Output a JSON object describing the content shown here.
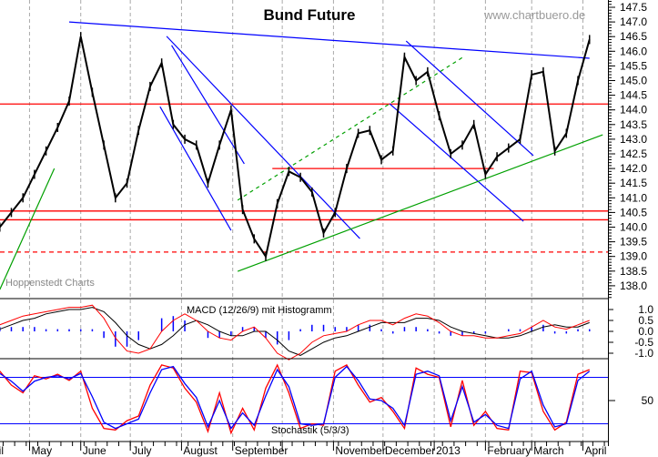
{
  "chart_data": {
    "type": "line",
    "title": "Bund Future",
    "watermark": "www.chartbuero.de",
    "source_label": "Hoppenstedt Charts",
    "ylim": [
      137.5,
      147.7
    ],
    "y_ticks": [
      "147.5",
      "147.0",
      "146.5",
      "146.0",
      "145.5",
      "145.0",
      "144.5",
      "144.0",
      "143.5",
      "143.0",
      "142.5",
      "142.0",
      "141.5",
      "141.0",
      "140.5",
      "140.0",
      "139.5",
      "139.0",
      "138.5",
      "138.0"
    ],
    "months": [
      {
        "label": "April",
        "date": "2012-04-01"
      },
      {
        "label": "May",
        "date": "2012-05-01"
      },
      {
        "label": "June",
        "date": "2012-06-01"
      },
      {
        "label": "July",
        "date": "2012-07-01"
      },
      {
        "label": "August",
        "date": "2012-08-01"
      },
      {
        "label": "September",
        "date": "2012-09-01"
      },
      {
        "label": "",
        "date": "2012-10-01"
      },
      {
        "label": "November",
        "date": "2012-11-01"
      },
      {
        "label": "December",
        "date": "2012-12-01"
      },
      {
        "label": "2013",
        "date": "2013-01-01"
      },
      {
        "label": "February",
        "date": "2013-02-01"
      },
      {
        "label": "March",
        "date": "2013-03-01"
      },
      {
        "label": "April",
        "date": "2013-04-01"
      }
    ],
    "price": {
      "dates": [
        "2012-04-13",
        "2012-04-20",
        "2012-04-27",
        "2012-05-04",
        "2012-05-11",
        "2012-05-18",
        "2012-05-25",
        "2012-06-01",
        "2012-06-08",
        "2012-06-15",
        "2012-06-22",
        "2012-06-29",
        "2012-07-06",
        "2012-07-13",
        "2012-07-20",
        "2012-07-27",
        "2012-08-03",
        "2012-08-10",
        "2012-08-17",
        "2012-08-24",
        "2012-08-31",
        "2012-09-07",
        "2012-09-14",
        "2012-09-21",
        "2012-09-28",
        "2012-10-05",
        "2012-10-12",
        "2012-10-19",
        "2012-10-26",
        "2012-11-02",
        "2012-11-09",
        "2012-11-16",
        "2012-11-23",
        "2012-11-30",
        "2012-12-07",
        "2012-12-14",
        "2012-12-21",
        "2012-12-28",
        "2013-01-04",
        "2013-01-11",
        "2013-01-18",
        "2013-01-25",
        "2013-02-01",
        "2013-02-08",
        "2013-02-15",
        "2013-02-22",
        "2013-03-01",
        "2013-03-08",
        "2013-03-15",
        "2013-03-22",
        "2013-03-29",
        "2013-04-05"
      ],
      "close": [
        140.0,
        140.5,
        141.0,
        141.8,
        142.6,
        143.4,
        144.3,
        146.5,
        144.6,
        142.8,
        141.0,
        141.5,
        143.3,
        144.8,
        145.6,
        143.5,
        143.0,
        142.8,
        141.5,
        142.8,
        144.0,
        140.6,
        139.6,
        139.0,
        140.8,
        141.9,
        141.7,
        141.2,
        139.8,
        140.5,
        142.0,
        143.2,
        143.3,
        142.3,
        142.6,
        145.8,
        145.0,
        145.3,
        143.8,
        142.5,
        142.8,
        143.5,
        141.8,
        142.4,
        142.7,
        143.0,
        145.2,
        145.3,
        142.6,
        143.2,
        145.0,
        146.4
      ]
    },
    "horizontal_lines": [
      {
        "price": 144.2,
        "color": "#ff0000",
        "style": "solid"
      },
      {
        "price": 140.55,
        "color": "#ff0000",
        "style": "solid"
      },
      {
        "price": 140.25,
        "color": "#ff0000",
        "style": "solid"
      },
      {
        "price": 139.15,
        "color": "#ff0000",
        "style": "dashed"
      },
      {
        "price": 142.0,
        "color": "#ff0000",
        "style": "solid",
        "from": "2012-09-25",
        "to": "2013-02-06"
      }
    ],
    "trend_lines": [
      {
        "from": [
          "2012-05-25",
          147.0
        ],
        "to": [
          "2013-04-05",
          145.76
        ],
        "color": "#0000ff",
        "style": "solid"
      },
      {
        "from": [
          "2012-07-23",
          146.51
        ],
        "to": [
          "2012-11-17",
          139.61
        ],
        "color": "#0000ff",
        "style": "solid"
      },
      {
        "from": [
          "2012-07-19",
          144.11
        ],
        "to": [
          "2012-08-31",
          139.89
        ],
        "color": "#0000ff",
        "style": "solid"
      },
      {
        "from": [
          "2012-07-26",
          146.2
        ],
        "to": [
          "2012-09-08",
          142.16
        ],
        "color": "#0000ff",
        "style": "solid"
      },
      {
        "from": [
          "2012-12-15",
          146.35
        ],
        "to": [
          "2013-03-02",
          142.44
        ],
        "color": "#0000ff",
        "style": "solid"
      },
      {
        "from": [
          "2012-12-05",
          144.21
        ],
        "to": [
          "2013-02-24",
          140.2
        ],
        "color": "#0000ff",
        "style": "solid"
      },
      {
        "from": [
          "2012-09-04",
          140.92
        ],
        "to": [
          "2013-01-19",
          145.82
        ],
        "color": "#00a000",
        "style": "dashed"
      },
      {
        "from": [
          "2012-09-04",
          138.49
        ],
        "to": [
          "2013-04-13",
          143.15
        ],
        "color": "#00a000",
        "style": "solid"
      },
      {
        "from": [
          "2012-04-13",
          137.87
        ],
        "to": [
          "2012-05-16",
          142.0
        ],
        "color": "#00a000",
        "style": "solid"
      }
    ],
    "macd": {
      "label": "MACD (12/26/9) mit Histogramm",
      "y_ticks": [
        "1.0",
        "0.5",
        "0.0",
        "-0.5",
        "-1.0"
      ],
      "ylim": [
        -1.2,
        1.2
      ],
      "macd": [
        0.3,
        0.5,
        0.7,
        0.8,
        0.9,
        1.0,
        1.1,
        1.1,
        1.2,
        0.6,
        -0.3,
        -0.9,
        -1.0,
        -0.8,
        0.0,
        0.5,
        0.8,
        0.5,
        0.0,
        -0.3,
        -0.4,
        0.0,
        0.2,
        -0.3,
        -1.0,
        -1.3,
        -1.0,
        -0.5,
        -0.2,
        -0.1,
        0.0,
        0.3,
        0.5,
        0.5,
        0.3,
        0.6,
        0.8,
        0.7,
        0.4,
        0.0,
        -0.2,
        -0.2,
        -0.3,
        -0.3,
        -0.2,
        -0.1,
        0.2,
        0.5,
        0.2,
        0.1,
        0.3,
        0.5
      ],
      "signal": [
        0.1,
        0.3,
        0.5,
        0.6,
        0.8,
        0.9,
        1.0,
        1.0,
        1.1,
        0.9,
        0.4,
        -0.2,
        -0.6,
        -0.8,
        -0.6,
        -0.2,
        0.3,
        0.5,
        0.3,
        0.0,
        -0.2,
        -0.2,
        0.0,
        0.0,
        -0.4,
        -0.9,
        -1.1,
        -0.8,
        -0.5,
        -0.3,
        -0.2,
        0.0,
        0.2,
        0.4,
        0.4,
        0.4,
        0.6,
        0.6,
        0.5,
        0.2,
        0.0,
        -0.1,
        -0.2,
        -0.3,
        -0.3,
        -0.2,
        0.0,
        0.2,
        0.3,
        0.2,
        0.2,
        0.4
      ],
      "macd_color": "#ff0000",
      "signal_color": "#000000",
      "histogram_color": "#0000ff"
    },
    "stochastic": {
      "label": "Stochastik (5/3/3)",
      "y_ticks": [
        "50"
      ],
      "ylim": [
        0,
        100
      ],
      "levels": [
        80,
        20
      ],
      "k": [
        88,
        70,
        60,
        82,
        78,
        84,
        76,
        88,
        40,
        14,
        12,
        24,
        30,
        70,
        96,
        92,
        66,
        48,
        10,
        60,
        8,
        40,
        12,
        66,
        96,
        60,
        14,
        20,
        18,
        88,
        96,
        70,
        48,
        54,
        36,
        14,
        92,
        84,
        80,
        16,
        76,
        18,
        36,
        14,
        12,
        88,
        86,
        36,
        12,
        22,
        84,
        90
      ],
      "d": [
        85,
        75,
        62,
        75,
        80,
        82,
        78,
        85,
        55,
        22,
        14,
        20,
        26,
        60,
        90,
        94,
        72,
        54,
        16,
        50,
        14,
        34,
        18,
        56,
        90,
        68,
        20,
        18,
        20,
        80,
        94,
        76,
        52,
        50,
        40,
        18,
        84,
        88,
        82,
        24,
        68,
        22,
        32,
        18,
        14,
        78,
        88,
        44,
        16,
        20,
        76,
        88
      ],
      "k_color": "#ff0000",
      "d_color": "#0000ff"
    }
  }
}
